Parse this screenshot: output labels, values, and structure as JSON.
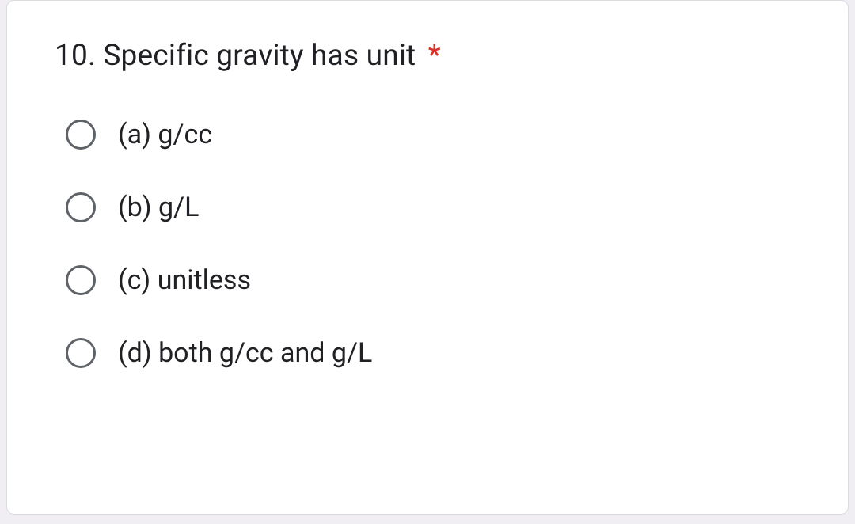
{
  "question": {
    "number": "10.",
    "text": "Specific gravity has unit",
    "required_marker": "*"
  },
  "options": [
    {
      "label": "(a) g/cc"
    },
    {
      "label": "(b) g/L"
    },
    {
      "label": "(c) unitless"
    },
    {
      "label": "(d) both g/cc and g/L"
    }
  ],
  "colors": {
    "text": "#202124",
    "radio_border": "#5f6368",
    "required": "#d93025",
    "card_bg": "#ffffff",
    "card_border": "#dadce0",
    "page_bg": "#f0eef2"
  },
  "typography": {
    "question_fontsize": 37,
    "option_fontsize": 34,
    "font_family": "Roboto, Arial, sans-serif"
  }
}
